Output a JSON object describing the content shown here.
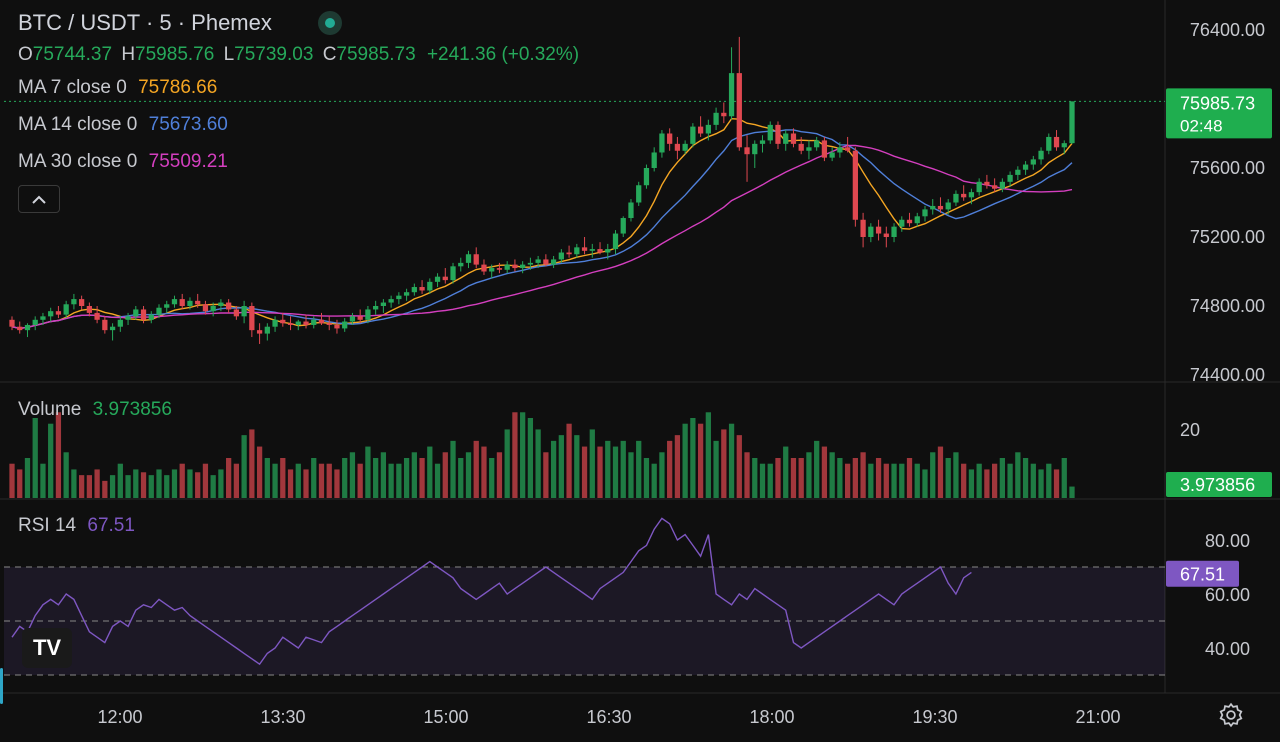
{
  "header": {
    "symbol": "BTC / USDT · 5 · Phemex",
    "ohlc": {
      "o_label": "O",
      "o": "75744.37",
      "h_label": "H",
      "h": "75985.76",
      "l_label": "L",
      "l": "75739.03",
      "c_label": "C",
      "c": "75985.73",
      "change": "+241.36 (+0.32%)"
    },
    "ma7": {
      "label": "MA 7 close 0",
      "value": "75786.66"
    },
    "ma14": {
      "label": "MA 14 close 0",
      "value": "75673.60"
    },
    "ma30": {
      "label": "MA 30 close 0",
      "value": "75509.21"
    },
    "collapse_icon": "chevron-up-icon"
  },
  "volume_pane": {
    "label": "Volume",
    "value": "3.973856",
    "axis_label": "20",
    "badge": "3.973856"
  },
  "rsi_pane": {
    "label": "RSI 14",
    "value": "67.51",
    "badge": "67.51",
    "ticks": [
      "80.00",
      "60.00",
      "40.00"
    ]
  },
  "price_badge": {
    "price": "75985.73",
    "countdown": "02:48"
  },
  "logo": {
    "text": "TV",
    "icon": "tradingview-logo-icon"
  },
  "settings_icon": "gear-icon",
  "colors": {
    "up": "#26a95b",
    "down": "#e04850",
    "ma7": "#f5a623",
    "ma14": "#4f7fd9",
    "ma30": "#d43fbf",
    "rsi": "#7e57c2",
    "bg": "#0f0f0f"
  },
  "chart_data": {
    "type": "candlestick",
    "price_ticks": [
      "76400.00",
      "76000.00",
      "75600.00",
      "75200.00",
      "74800.00",
      "74400.00"
    ],
    "price_ylim": [
      74400,
      76400
    ],
    "time_ticks": [
      "12:00",
      "13:30",
      "15:00",
      "16:30",
      "18:00",
      "19:30",
      "21:00"
    ],
    "volume_ylim": [
      0,
      35
    ],
    "rsi_ylim": [
      30,
      90
    ],
    "rsi_band": [
      30,
      70
    ],
    "rsi_levels": [
      30,
      50,
      70
    ],
    "candles": [
      [
        74720,
        74740,
        74660,
        74680,
        12
      ],
      [
        74680,
        74710,
        74640,
        74660,
        10
      ],
      [
        74660,
        74700,
        74620,
        74690,
        14
      ],
      [
        74690,
        74740,
        74660,
        74720,
        28
      ],
      [
        74720,
        74760,
        74690,
        74740,
        12
      ],
      [
        74740,
        74790,
        74710,
        74770,
        26
      ],
      [
        74770,
        74800,
        74730,
        74750,
        30
      ],
      [
        74750,
        74830,
        74730,
        74810,
        16
      ],
      [
        74810,
        74870,
        74780,
        74840,
        10
      ],
      [
        74840,
        74860,
        74780,
        74800,
        8
      ],
      [
        74800,
        74820,
        74740,
        74760,
        8
      ],
      [
        74760,
        74800,
        74700,
        74720,
        10
      ],
      [
        74720,
        74740,
        74640,
        74660,
        6
      ],
      [
        74660,
        74700,
        74600,
        74680,
        8
      ],
      [
        74680,
        74740,
        74650,
        74720,
        12
      ],
      [
        74720,
        74760,
        74690,
        74740,
        8
      ],
      [
        74740,
        74800,
        74720,
        74780,
        10
      ],
      [
        74780,
        74800,
        74700,
        74720,
        9
      ],
      [
        74720,
        74770,
        74700,
        74750,
        8
      ],
      [
        74750,
        74810,
        74730,
        74790,
        10
      ],
      [
        74790,
        74830,
        74760,
        74810,
        8
      ],
      [
        74810,
        74860,
        74790,
        74840,
        10
      ],
      [
        74840,
        74870,
        74780,
        74800,
        12
      ],
      [
        74800,
        74850,
        74780,
        74830,
        10
      ],
      [
        74830,
        74870,
        74790,
        74810,
        9
      ],
      [
        74810,
        74830,
        74750,
        74770,
        12
      ],
      [
        74770,
        74820,
        74740,
        74800,
        8
      ],
      [
        74800,
        74840,
        74770,
        74820,
        10
      ],
      [
        74820,
        74840,
        74760,
        74780,
        14
      ],
      [
        74780,
        74800,
        74720,
        74740,
        12
      ],
      [
        74740,
        74830,
        74700,
        74800,
        22
      ],
      [
        74800,
        74820,
        74620,
        74660,
        24
      ],
      [
        74660,
        74700,
        74580,
        74640,
        18
      ],
      [
        74640,
        74700,
        74600,
        74680,
        14
      ],
      [
        74680,
        74740,
        74650,
        74720,
        12
      ],
      [
        74720,
        74760,
        74680,
        74700,
        14
      ],
      [
        74700,
        74740,
        74660,
        74690,
        10
      ],
      [
        74690,
        74720,
        74660,
        74710,
        12
      ],
      [
        74710,
        74750,
        74670,
        74690,
        10
      ],
      [
        74690,
        74740,
        74670,
        74720,
        14
      ],
      [
        74720,
        74760,
        74690,
        74700,
        12
      ],
      [
        74700,
        74740,
        74660,
        74690,
        12
      ],
      [
        74690,
        74720,
        74640,
        74670,
        10
      ],
      [
        74670,
        74730,
        74650,
        74710,
        14
      ],
      [
        74710,
        74760,
        74690,
        74740,
        16
      ],
      [
        74740,
        74780,
        74700,
        74720,
        12
      ],
      [
        74720,
        74800,
        74700,
        74780,
        18
      ],
      [
        74780,
        74830,
        74750,
        74800,
        14
      ],
      [
        74800,
        74840,
        74760,
        74820,
        16
      ],
      [
        74820,
        74860,
        74790,
        74840,
        12
      ],
      [
        74840,
        74880,
        74810,
        74860,
        12
      ],
      [
        74860,
        74900,
        74830,
        74880,
        14
      ],
      [
        74880,
        74930,
        74860,
        74910,
        16
      ],
      [
        74910,
        74950,
        74870,
        74890,
        14
      ],
      [
        74890,
        74960,
        74870,
        74940,
        18
      ],
      [
        74940,
        74990,
        74910,
        74970,
        12
      ],
      [
        74970,
        75020,
        74930,
        74950,
        16
      ],
      [
        74950,
        75050,
        74930,
        75030,
        20
      ],
      [
        75030,
        75080,
        75000,
        75050,
        14
      ],
      [
        75050,
        75120,
        75020,
        75100,
        16
      ],
      [
        75100,
        75140,
        75020,
        75040,
        20
      ],
      [
        75040,
        75070,
        74980,
        75000,
        18
      ],
      [
        75000,
        75040,
        74960,
        75020,
        14
      ],
      [
        75020,
        75050,
        74990,
        75010,
        16
      ],
      [
        75010,
        75060,
        74990,
        75040,
        24
      ],
      [
        75040,
        75070,
        75000,
        75020,
        30
      ],
      [
        75020,
        75060,
        74990,
        75040,
        30
      ],
      [
        75040,
        75080,
        75010,
        75050,
        28
      ],
      [
        75050,
        75090,
        75020,
        75070,
        24
      ],
      [
        75070,
        75100,
        75030,
        75040,
        16
      ],
      [
        75040,
        75090,
        75020,
        75070,
        20
      ],
      [
        75070,
        75130,
        75050,
        75110,
        22
      ],
      [
        75110,
        75150,
        75080,
        75100,
        26
      ],
      [
        75100,
        75160,
        75080,
        75140,
        22
      ],
      [
        75140,
        75200,
        75100,
        75120,
        18
      ],
      [
        75120,
        75160,
        75080,
        75130,
        24
      ],
      [
        75130,
        75170,
        75100,
        75110,
        18
      ],
      [
        75110,
        75160,
        75070,
        75130,
        20
      ],
      [
        75130,
        75240,
        75100,
        75220,
        18
      ],
      [
        75220,
        75320,
        75200,
        75310,
        20
      ],
      [
        75310,
        75420,
        75290,
        75400,
        16
      ],
      [
        75400,
        75520,
        75380,
        75500,
        20
      ],
      [
        75500,
        75620,
        75480,
        75600,
        14
      ],
      [
        75600,
        75720,
        75580,
        75690,
        12
      ],
      [
        75690,
        75820,
        75660,
        75800,
        16
      ],
      [
        75800,
        75830,
        75700,
        75740,
        20
      ],
      [
        75740,
        75780,
        75650,
        75700,
        22
      ],
      [
        75700,
        75760,
        75680,
        75740,
        26
      ],
      [
        75740,
        75860,
        75720,
        75840,
        28
      ],
      [
        75840,
        75900,
        75780,
        75800,
        26
      ],
      [
        75800,
        75880,
        75760,
        75850,
        30
      ],
      [
        75850,
        75950,
        75820,
        75920,
        20
      ],
      [
        75920,
        75980,
        75860,
        75900,
        24
      ],
      [
        75900,
        76300,
        75880,
        76150,
        26
      ],
      [
        76150,
        76360,
        75700,
        75720,
        22
      ],
      [
        75720,
        75790,
        75520,
        75680,
        16
      ],
      [
        75680,
        75760,
        75600,
        75740,
        14
      ],
      [
        75740,
        75790,
        75690,
        75760,
        12
      ],
      [
        75760,
        75870,
        75740,
        75850,
        12
      ],
      [
        75850,
        75870,
        75710,
        75740,
        14
      ],
      [
        75740,
        75820,
        75700,
        75800,
        18
      ],
      [
        75800,
        75830,
        75720,
        75740,
        14
      ],
      [
        75740,
        75780,
        75680,
        75700,
        14
      ],
      [
        75700,
        75760,
        75650,
        75720,
        16
      ],
      [
        75720,
        75780,
        75700,
        75760,
        20
      ],
      [
        75760,
        75780,
        75640,
        75660,
        18
      ],
      [
        75660,
        75720,
        75640,
        75690,
        16
      ],
      [
        75690,
        75750,
        75660,
        75720,
        14
      ],
      [
        75720,
        75780,
        75690,
        75700,
        12
      ],
      [
        75700,
        75720,
        75260,
        75300,
        14
      ],
      [
        75300,
        75340,
        75140,
        75200,
        16
      ],
      [
        75200,
        75280,
        75170,
        75260,
        12
      ],
      [
        75260,
        75300,
        75180,
        75220,
        14
      ],
      [
        75220,
        75260,
        75140,
        75200,
        12
      ],
      [
        75200,
        75280,
        75170,
        75260,
        12
      ],
      [
        75260,
        75320,
        75230,
        75300,
        12
      ],
      [
        75300,
        75340,
        75260,
        75280,
        14
      ],
      [
        75280,
        75340,
        75260,
        75320,
        12
      ],
      [
        75320,
        75380,
        75290,
        75360,
        10
      ],
      [
        75360,
        75420,
        75330,
        75380,
        16
      ],
      [
        75380,
        75430,
        75340,
        75360,
        18
      ],
      [
        75360,
        75420,
        75330,
        75400,
        14
      ],
      [
        75400,
        75470,
        75380,
        75450,
        16
      ],
      [
        75450,
        75500,
        75410,
        75430,
        12
      ],
      [
        75430,
        75480,
        75390,
        75460,
        10
      ],
      [
        75460,
        75540,
        75440,
        75520,
        12
      ],
      [
        75520,
        75560,
        75480,
        75500,
        10
      ],
      [
        75500,
        75540,
        75460,
        75480,
        12
      ],
      [
        75480,
        75540,
        75460,
        75520,
        14
      ],
      [
        75520,
        75580,
        75490,
        75560,
        12
      ],
      [
        75560,
        75610,
        75530,
        75590,
        16
      ],
      [
        75590,
        75640,
        75560,
        75620,
        14
      ],
      [
        75620,
        75670,
        75590,
        75650,
        12
      ],
      [
        75650,
        75720,
        75620,
        75700,
        10
      ],
      [
        75700,
        75800,
        75680,
        75780,
        12
      ],
      [
        75780,
        75820,
        75700,
        75720,
        10
      ],
      [
        75720,
        75760,
        75680,
        75744,
        14
      ],
      [
        75744,
        75986,
        75739,
        75986,
        4
      ]
    ],
    "rsi": [
      44,
      48,
      46,
      52,
      56,
      58,
      56,
      60,
      58,
      52,
      46,
      44,
      42,
      48,
      50,
      48,
      54,
      56,
      55,
      58,
      56,
      54,
      55,
      52,
      50,
      48,
      46,
      44,
      42,
      40,
      38,
      36,
      34,
      38,
      40,
      44,
      42,
      40,
      44,
      43,
      42,
      46,
      48,
      50,
      52,
      54,
      56,
      58,
      60,
      62,
      64,
      66,
      68,
      70,
      72,
      70,
      68,
      66,
      62,
      60,
      58,
      60,
      62,
      64,
      60,
      62,
      64,
      66,
      68,
      70,
      68,
      66,
      64,
      62,
      60,
      58,
      62,
      64,
      66,
      68,
      72,
      76,
      78,
      84,
      88,
      86,
      80,
      82,
      78,
      74,
      82,
      60,
      58,
      56,
      60,
      58,
      62,
      60,
      58,
      56,
      54,
      42,
      40,
      42,
      44,
      46,
      48,
      50,
      52,
      54,
      56,
      58,
      60,
      58,
      56,
      60,
      62,
      64,
      66,
      68,
      70,
      64,
      60,
      66,
      68
    ]
  }
}
